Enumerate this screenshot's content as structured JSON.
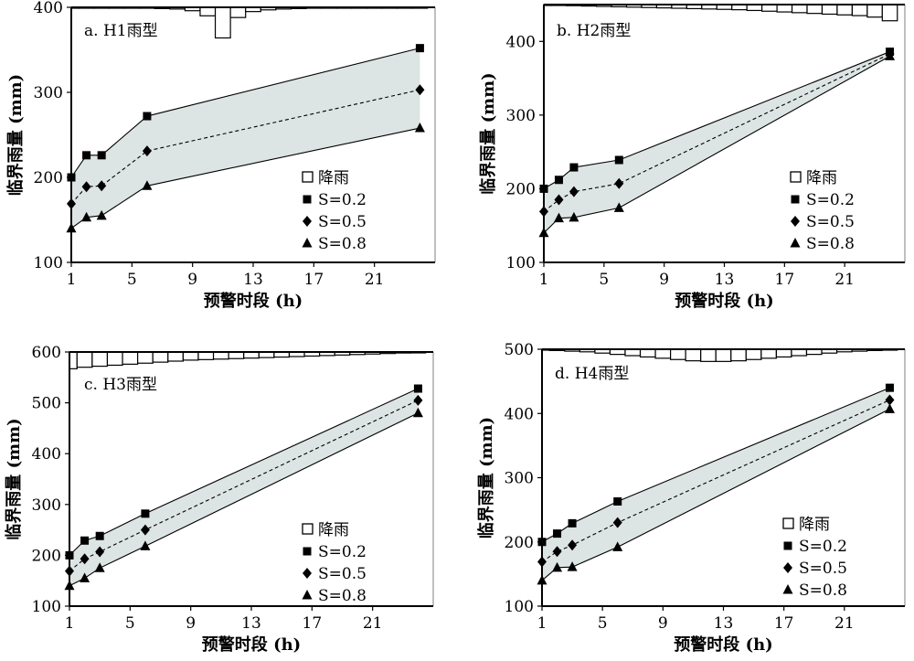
{
  "chart_data": [
    {
      "type": "line",
      "panel_label": "a. H1雨型",
      "xlabel": "预警时段 (h)",
      "ylabel": "临界雨量 (mm)",
      "xlim": [
        1,
        25
      ],
      "ylim": [
        100,
        400
      ],
      "xticks": [
        1,
        5,
        9,
        13,
        17,
        21
      ],
      "yticks": [
        100,
        200,
        300,
        400
      ],
      "x": [
        1,
        2,
        3,
        6,
        24
      ],
      "series": [
        {
          "name": "S=0.2",
          "marker": "square",
          "values": [
            200,
            226,
            226,
            272,
            352
          ]
        },
        {
          "name": "S=0.5",
          "marker": "diamond",
          "values": [
            169,
            189,
            190,
            231,
            303
          ]
        },
        {
          "name": "S=0.8",
          "marker": "triangle",
          "values": [
            140,
            153,
            155,
            190,
            258
          ]
        }
      ],
      "rain": {
        "name": "降雨",
        "hours": [
          1,
          2,
          3,
          4,
          5,
          6,
          7,
          8,
          9,
          10,
          11,
          12,
          13,
          14,
          15,
          16,
          17,
          18,
          19,
          20,
          21,
          22,
          23,
          24
        ],
        "depth": [
          0.5,
          0.5,
          0.5,
          1,
          1,
          1,
          1.5,
          2,
          4,
          10,
          36,
          12,
          5,
          3,
          2,
          1.5,
          1,
          1,
          1,
          0.5,
          0.5,
          0.5,
          0.5,
          0.5
        ],
        "depth_max": 36,
        "baseline_value": 400,
        "max_value": 364
      },
      "legend": [
        "降雨",
        "S=0.2",
        "S=0.5",
        "S=0.8"
      ],
      "legend_placement": "bottom-right"
    },
    {
      "type": "line",
      "panel_label": "b. H2雨型",
      "xlabel": "预警时段 (h)",
      "ylabel": "临界雨量 (mm)",
      "xlim": [
        1,
        25
      ],
      "ylim": [
        100,
        450
      ],
      "xticks": [
        1,
        5,
        9,
        13,
        17,
        21
      ],
      "yticks": [
        100,
        200,
        300,
        400
      ],
      "x": [
        1,
        2,
        3,
        6,
        24
      ],
      "series": [
        {
          "name": "S=0.2",
          "marker": "square",
          "values": [
            200,
            212,
            229,
            239,
            386
          ]
        },
        {
          "name": "S=0.5",
          "marker": "diamond",
          "values": [
            169,
            185,
            196,
            207,
            383
          ]
        },
        {
          "name": "S=0.8",
          "marker": "triangle",
          "values": [
            140,
            160,
            161,
            174,
            380
          ]
        }
      ],
      "rain": {
        "name": "降雨",
        "hours": [
          1,
          2,
          3,
          4,
          5,
          6,
          7,
          8,
          9,
          10,
          11,
          12,
          13,
          14,
          15,
          16,
          17,
          18,
          19,
          20,
          21,
          22,
          23,
          24
        ],
        "depth": [
          0.5,
          1,
          1.5,
          2,
          2.5,
          3,
          3.5,
          4,
          4.5,
          5,
          5.5,
          6,
          6.5,
          7,
          8,
          9,
          10,
          11,
          12,
          13,
          14,
          15,
          17,
          22
        ],
        "depth_max": 22,
        "baseline_value": 450,
        "max_value": 428
      },
      "legend": [
        "降雨",
        "S=0.2",
        "S=0.5",
        "S=0.8"
      ],
      "legend_placement": "bottom-right"
    },
    {
      "type": "line",
      "panel_label": "c. H3雨型",
      "xlabel": "预警时段 (h)",
      "ylabel": "临界雨量 (mm)",
      "xlim": [
        1,
        25
      ],
      "ylim": [
        100,
        600
      ],
      "xticks": [
        1,
        5,
        9,
        13,
        17,
        21
      ],
      "yticks": [
        100,
        200,
        300,
        400,
        500,
        600
      ],
      "x": [
        1,
        2,
        3,
        6,
        24
      ],
      "series": [
        {
          "name": "S=0.2",
          "marker": "square",
          "values": [
            200,
            229,
            238,
            282,
            528
          ]
        },
        {
          "name": "S=0.5",
          "marker": "diamond",
          "values": [
            169,
            193,
            207,
            250,
            505
          ]
        },
        {
          "name": "S=0.8",
          "marker": "triangle",
          "values": [
            140,
            155,
            175,
            218,
            480
          ]
        }
      ],
      "rain": {
        "name": "降雨",
        "hours": [
          1,
          2,
          3,
          4,
          5,
          6,
          7,
          8,
          9,
          10,
          11,
          12,
          13,
          14,
          15,
          16,
          17,
          18,
          19,
          20,
          21,
          22,
          23,
          24
        ],
        "depth": [
          33,
          30,
          28,
          26,
          24,
          22,
          20,
          18,
          16,
          15,
          14,
          13,
          12,
          11,
          10,
          9,
          8,
          7,
          6,
          5,
          4,
          3,
          2,
          1
        ],
        "depth_max": 33,
        "baseline_value": 600,
        "max_value": 567
      },
      "legend": [
        "降雨",
        "S=0.2",
        "S=0.5",
        "S=0.8"
      ],
      "legend_placement": "bottom-left"
    },
    {
      "type": "line",
      "panel_label": "d. H4雨型",
      "xlabel": "预警时段 (h)",
      "ylabel": "临界雨量 (mm)",
      "xlim": [
        1,
        25
      ],
      "ylim": [
        100,
        500
      ],
      "xticks": [
        1,
        5,
        9,
        13,
        17,
        21
      ],
      "yticks": [
        100,
        200,
        300,
        400,
        500
      ],
      "x": [
        1,
        2,
        3,
        6,
        24
      ],
      "series": [
        {
          "name": "S=0.2",
          "marker": "square",
          "values": [
            200,
            213,
            229,
            263,
            440
          ]
        },
        {
          "name": "S=0.5",
          "marker": "diamond",
          "values": [
            169,
            185,
            195,
            230,
            421
          ]
        },
        {
          "name": "S=0.8",
          "marker": "triangle",
          "values": [
            140,
            160,
            161,
            192,
            407
          ]
        }
      ],
      "rain": {
        "name": "降雨",
        "hours": [
          1,
          2,
          3,
          4,
          5,
          6,
          7,
          8,
          9,
          10,
          11,
          12,
          13,
          14,
          15,
          16,
          17,
          18,
          19,
          20,
          21,
          22,
          23,
          24
        ],
        "depth": [
          1,
          2,
          3,
          4,
          6,
          8,
          10,
          12,
          14,
          16,
          18,
          19,
          19,
          18,
          16,
          14,
          12,
          10,
          8,
          6,
          4,
          3,
          2,
          1
        ],
        "depth_max": 19,
        "baseline_value": 500,
        "max_value": 481
      },
      "legend": [
        "降雨",
        "S=0.2",
        "S=0.5",
        "S=0.8"
      ],
      "legend_placement": "bottom-left"
    }
  ],
  "colors": {
    "band_fill": "#dde4e4",
    "line": "#000000",
    "right_axis": "#bfbfbf"
  }
}
